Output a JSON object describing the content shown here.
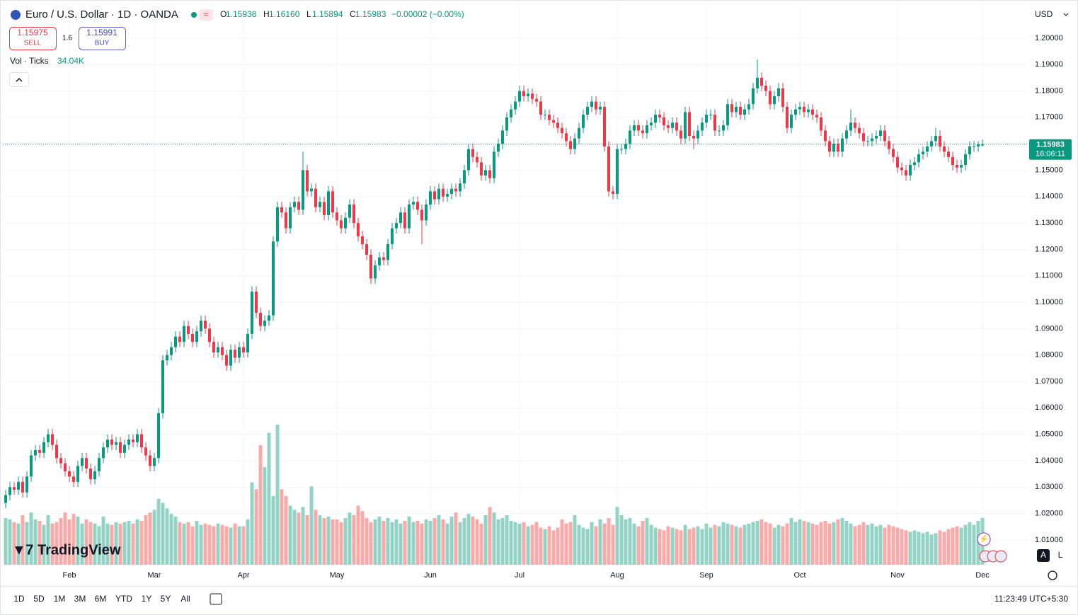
{
  "header": {
    "symbol": "Euro / U.S. Dollar · 1D · OANDA",
    "legend": [
      {
        "key": "O",
        "value": "1.15938"
      },
      {
        "key": "H",
        "value": "1.16160"
      },
      {
        "key": "L",
        "value": "1.15894"
      },
      {
        "key": "C",
        "value": "1.15983"
      }
    ],
    "change": "−0.00002 (−0.00%)"
  },
  "trade": {
    "sell_price": "1.15975",
    "sell": "SELL",
    "spread": "1.6",
    "buy_price": "1.15991",
    "buy": "BUY"
  },
  "volume_legend": {
    "label": "Vol · Ticks",
    "value": "34.04K"
  },
  "currency": "USD",
  "chart_data": {
    "type": "candlestick",
    "grid": true,
    "up_color": "#089981",
    "down_color": "#f23645",
    "volume_up_color": "#93d3c6",
    "volume_down_color": "#f7aaa8",
    "categories": [
      null,
      null,
      null,
      null,
      null,
      null,
      null,
      null,
      null,
      null,
      null,
      null,
      null,
      null,
      null,
      "Feb",
      null,
      null,
      null,
      null,
      null,
      null,
      null,
      null,
      null,
      null,
      null,
      null,
      null,
      null,
      null,
      null,
      null,
      null,
      null,
      "Mar",
      null,
      null,
      null,
      null,
      null,
      null,
      null,
      null,
      null,
      null,
      null,
      null,
      null,
      null,
      null,
      null,
      null,
      null,
      null,
      null,
      "Apr",
      null,
      null,
      null,
      null,
      null,
      null,
      null,
      null,
      null,
      null,
      null,
      null,
      null,
      null,
      null,
      null,
      null,
      null,
      null,
      null,
      null,
      "May",
      null,
      null,
      null,
      null,
      null,
      null,
      null,
      null,
      null,
      null,
      null,
      null,
      null,
      null,
      null,
      null,
      null,
      null,
      null,
      null,
      null,
      "Jun",
      null,
      null,
      null,
      null,
      null,
      null,
      null,
      null,
      null,
      null,
      null,
      null,
      null,
      null,
      null,
      null,
      null,
      null,
      null,
      null,
      "Jul",
      null,
      null,
      null,
      null,
      null,
      null,
      null,
      null,
      null,
      null,
      null,
      null,
      null,
      null,
      null,
      null,
      null,
      null,
      null,
      null,
      null,
      null,
      "Aug",
      null,
      null,
      null,
      null,
      null,
      null,
      null,
      null,
      null,
      null,
      null,
      null,
      null,
      null,
      null,
      null,
      null,
      null,
      null,
      null,
      "Sep",
      null,
      null,
      null,
      null,
      null,
      null,
      null,
      null,
      null,
      null,
      null,
      null,
      null,
      null,
      null,
      null,
      null,
      null,
      null,
      null,
      null,
      "Oct",
      null,
      null,
      null,
      null,
      null,
      null,
      null,
      null,
      null,
      null,
      null,
      null,
      null,
      null,
      null,
      null,
      null,
      null,
      null,
      null,
      null,
      null,
      "Nov",
      null,
      null,
      null,
      null,
      null,
      null,
      null,
      null,
      null,
      null,
      null,
      null,
      null,
      null,
      null,
      null,
      null,
      null,
      null,
      "Dec"
    ],
    "open": [
      1.024,
      1.027,
      1.03,
      1.029,
      1.032,
      1.028,
      1.034,
      1.042,
      1.044,
      1.043,
      1.047,
      1.05,
      1.046,
      1.041,
      1.039,
      1.036,
      1.034,
      1.032,
      1.038,
      1.041,
      1.037,
      1.033,
      1.036,
      1.041,
      1.045,
      1.048,
      1.046,
      1.047,
      1.043,
      1.046,
      1.048,
      1.047,
      1.05,
      1.045,
      1.042,
      1.038,
      1.041,
      1.058,
      1.078,
      1.08,
      1.083,
      1.087,
      1.085,
      1.091,
      1.088,
      1.085,
      1.089,
      1.093,
      1.09,
      1.085,
      1.081,
      1.083,
      1.08,
      1.076,
      1.082,
      1.079,
      1.083,
      1.081,
      1.088,
      1.104,
      1.096,
      1.091,
      1.093,
      1.095,
      1.123,
      1.136,
      1.134,
      1.128,
      1.136,
      1.138,
      1.135,
      1.15,
      1.142,
      1.143,
      1.136,
      1.138,
      1.133,
      1.142,
      1.134,
      1.131,
      1.128,
      1.132,
      1.137,
      1.13,
      1.125,
      1.122,
      1.118,
      1.109,
      1.114,
      1.117,
      1.116,
      1.122,
      1.128,
      1.13,
      1.134,
      1.128,
      1.137,
      1.138,
      1.135,
      1.131,
      1.137,
      1.142,
      1.139,
      1.143,
      1.14,
      1.141,
      1.143,
      1.142,
      1.145,
      1.15,
      1.158,
      1.155,
      1.153,
      1.148,
      1.15,
      1.147,
      1.157,
      1.16,
      1.165,
      1.17,
      1.173,
      1.176,
      1.18,
      1.178,
      1.179,
      1.177,
      1.176,
      1.171,
      1.171,
      1.169,
      1.168,
      1.166,
      1.164,
      1.161,
      1.158,
      1.162,
      1.166,
      1.171,
      1.174,
      1.176,
      1.173,
      1.174,
      1.159,
      1.142,
      1.141,
      1.158,
      1.158,
      1.16,
      1.165,
      1.167,
      1.165,
      1.164,
      1.167,
      1.168,
      1.171,
      1.17,
      1.167,
      1.166,
      1.168,
      1.165,
      1.162,
      1.172,
      1.163,
      1.162,
      1.165,
      1.168,
      1.171,
      1.171,
      1.165,
      1.165,
      1.167,
      1.175,
      1.172,
      1.174,
      1.171,
      1.173,
      1.175,
      1.181,
      1.185,
      1.182,
      1.18,
      1.175,
      1.178,
      1.181,
      1.174,
      1.166,
      1.171,
      1.173,
      1.174,
      1.172,
      1.173,
      1.171,
      1.17,
      1.165,
      1.161,
      1.157,
      1.16,
      1.157,
      1.162,
      1.165,
      1.168,
      1.166,
      1.164,
      1.161,
      1.161,
      1.162,
      1.163,
      1.165,
      1.161,
      1.158,
      1.155,
      1.151,
      1.15,
      1.148,
      1.152,
      1.153,
      1.156,
      1.157,
      1.159,
      1.161,
      1.163,
      1.159,
      1.157,
      1.155,
      1.152,
      1.151,
      1.152,
      1.156,
      1.159,
      1.159,
      1.15938
    ],
    "high": [
      1.029,
      1.032,
      1.032,
      1.034,
      1.034,
      1.036,
      1.044,
      1.046,
      1.046,
      1.049,
      1.052,
      1.052,
      1.048,
      1.043,
      1.041,
      1.038,
      1.036,
      1.04,
      1.043,
      1.043,
      1.039,
      1.038,
      1.043,
      1.047,
      1.05,
      1.05,
      1.049,
      1.049,
      1.048,
      1.05,
      1.05,
      1.052,
      1.052,
      1.047,
      1.044,
      1.043,
      1.06,
      1.08,
      1.082,
      1.085,
      1.089,
      1.089,
      1.093,
      1.093,
      1.09,
      1.091,
      1.095,
      1.095,
      1.092,
      1.087,
      1.085,
      1.085,
      1.082,
      1.084,
      1.084,
      1.085,
      1.085,
      1.09,
      1.106,
      1.106,
      1.098,
      1.095,
      1.097,
      1.125,
      1.138,
      1.138,
      1.136,
      1.138,
      1.14,
      1.14,
      1.157,
      1.152,
      1.145,
      1.145,
      1.14,
      1.14,
      1.144,
      1.144,
      1.136,
      1.133,
      1.134,
      1.139,
      1.139,
      1.132,
      1.127,
      1.124,
      1.12,
      1.116,
      1.119,
      1.119,
      1.124,
      1.13,
      1.132,
      1.136,
      1.136,
      1.139,
      1.14,
      1.14,
      1.137,
      1.139,
      1.144,
      1.144,
      1.145,
      1.145,
      1.143,
      1.145,
      1.145,
      1.147,
      1.152,
      1.16,
      1.16,
      1.157,
      1.155,
      1.152,
      1.152,
      1.159,
      1.162,
      1.167,
      1.172,
      1.175,
      1.178,
      1.182,
      1.182,
      1.181,
      1.181,
      1.179,
      1.178,
      1.173,
      1.173,
      1.171,
      1.17,
      1.168,
      1.166,
      1.163,
      1.164,
      1.168,
      1.173,
      1.176,
      1.178,
      1.178,
      1.176,
      1.176,
      1.161,
      1.144,
      1.16,
      1.16,
      1.162,
      1.167,
      1.169,
      1.169,
      1.167,
      1.169,
      1.17,
      1.173,
      1.173,
      1.172,
      1.169,
      1.17,
      1.17,
      1.167,
      1.174,
      1.174,
      1.165,
      1.167,
      1.17,
      1.173,
      1.173,
      1.173,
      1.167,
      1.169,
      1.177,
      1.177,
      1.176,
      1.176,
      1.175,
      1.177,
      1.183,
      1.192,
      1.187,
      1.184,
      1.182,
      1.18,
      1.183,
      1.183,
      1.176,
      1.173,
      1.175,
      1.176,
      1.176,
      1.175,
      1.175,
      1.173,
      1.172,
      1.167,
      1.163,
      1.162,
      1.162,
      1.164,
      1.167,
      1.173,
      1.17,
      1.168,
      1.166,
      1.163,
      1.164,
      1.165,
      1.167,
      1.167,
      1.163,
      1.16,
      1.157,
      1.153,
      1.152,
      1.154,
      1.155,
      1.158,
      1.159,
      1.161,
      1.163,
      1.166,
      1.165,
      1.161,
      1.159,
      1.157,
      1.154,
      1.154,
      1.158,
      1.161,
      1.161,
      1.161,
      1.1616
    ],
    "low": [
      1.022,
      1.025,
      1.027,
      1.027,
      1.026,
      1.026,
      1.032,
      1.04,
      1.041,
      1.041,
      1.045,
      1.044,
      1.039,
      1.037,
      1.034,
      1.032,
      1.03,
      1.03,
      1.036,
      1.035,
      1.031,
      1.031,
      1.034,
      1.039,
      1.043,
      1.044,
      1.044,
      1.041,
      1.041,
      1.044,
      1.045,
      1.045,
      1.043,
      1.04,
      1.036,
      1.036,
      1.039,
      1.056,
      1.076,
      1.078,
      1.081,
      1.083,
      1.083,
      1.086,
      1.083,
      1.083,
      1.087,
      1.088,
      1.083,
      1.079,
      1.079,
      1.078,
      1.074,
      1.074,
      1.077,
      1.077,
      1.079,
      1.079,
      1.086,
      1.094,
      1.089,
      1.089,
      1.091,
      1.093,
      1.121,
      1.132,
      1.126,
      1.126,
      1.134,
      1.133,
      1.133,
      1.14,
      1.14,
      1.134,
      1.134,
      1.131,
      1.131,
      1.132,
      1.129,
      1.126,
      1.126,
      1.13,
      1.128,
      1.123,
      1.12,
      1.116,
      1.107,
      1.107,
      1.112,
      1.114,
      1.114,
      1.12,
      1.126,
      1.128,
      1.126,
      1.126,
      1.135,
      1.133,
      1.122,
      1.129,
      1.135,
      1.137,
      1.137,
      1.138,
      1.138,
      1.139,
      1.14,
      1.14,
      1.143,
      1.148,
      1.153,
      1.151,
      1.146,
      1.146,
      1.145,
      1.145,
      1.155,
      1.158,
      1.163,
      1.168,
      1.171,
      1.174,
      1.176,
      1.176,
      1.175,
      1.174,
      1.169,
      1.169,
      1.167,
      1.166,
      1.164,
      1.162,
      1.159,
      1.156,
      1.156,
      1.16,
      1.164,
      1.169,
      1.172,
      1.171,
      1.171,
      1.157,
      1.14,
      1.139,
      1.139,
      1.156,
      1.156,
      1.158,
      1.163,
      1.163,
      1.162,
      1.162,
      1.165,
      1.166,
      1.168,
      1.165,
      1.164,
      1.164,
      1.163,
      1.16,
      1.16,
      1.161,
      1.158,
      1.16,
      1.163,
      1.166,
      1.169,
      1.163,
      1.163,
      1.163,
      1.165,
      1.17,
      1.17,
      1.169,
      1.169,
      1.171,
      1.173,
      1.179,
      1.18,
      1.178,
      1.173,
      1.173,
      1.176,
      1.172,
      1.164,
      1.164,
      1.169,
      1.171,
      1.17,
      1.17,
      1.169,
      1.168,
      1.163,
      1.159,
      1.155,
      1.155,
      1.155,
      1.155,
      1.16,
      1.163,
      1.164,
      1.162,
      1.159,
      1.159,
      1.159,
      1.16,
      1.161,
      1.159,
      1.156,
      1.153,
      1.149,
      1.148,
      1.146,
      1.146,
      1.15,
      1.151,
      1.154,
      1.155,
      1.157,
      1.159,
      1.157,
      1.155,
      1.153,
      1.15,
      1.149,
      1.149,
      1.15,
      1.154,
      1.157,
      1.157,
      1.15894
    ],
    "close": [
      1.027,
      1.03,
      1.029,
      1.032,
      1.028,
      1.034,
      1.042,
      1.044,
      1.043,
      1.047,
      1.05,
      1.046,
      1.041,
      1.039,
      1.036,
      1.034,
      1.032,
      1.038,
      1.041,
      1.037,
      1.033,
      1.036,
      1.041,
      1.045,
      1.048,
      1.046,
      1.047,
      1.043,
      1.046,
      1.048,
      1.047,
      1.05,
      1.045,
      1.042,
      1.038,
      1.041,
      1.058,
      1.078,
      1.08,
      1.083,
      1.087,
      1.085,
      1.091,
      1.088,
      1.085,
      1.089,
      1.093,
      1.09,
      1.085,
      1.081,
      1.083,
      1.08,
      1.076,
      1.082,
      1.079,
      1.083,
      1.081,
      1.088,
      1.104,
      1.096,
      1.091,
      1.093,
      1.095,
      1.123,
      1.136,
      1.134,
      1.128,
      1.136,
      1.138,
      1.135,
      1.15,
      1.142,
      1.143,
      1.136,
      1.138,
      1.133,
      1.142,
      1.134,
      1.131,
      1.128,
      1.132,
      1.137,
      1.13,
      1.125,
      1.122,
      1.118,
      1.109,
      1.114,
      1.117,
      1.116,
      1.122,
      1.128,
      1.13,
      1.134,
      1.128,
      1.137,
      1.138,
      1.135,
      1.131,
      1.137,
      1.142,
      1.139,
      1.143,
      1.14,
      1.141,
      1.143,
      1.142,
      1.145,
      1.15,
      1.158,
      1.155,
      1.153,
      1.148,
      1.15,
      1.147,
      1.157,
      1.16,
      1.165,
      1.17,
      1.173,
      1.176,
      1.18,
      1.178,
      1.179,
      1.177,
      1.176,
      1.171,
      1.171,
      1.169,
      1.168,
      1.166,
      1.164,
      1.161,
      1.158,
      1.162,
      1.166,
      1.171,
      1.174,
      1.176,
      1.173,
      1.174,
      1.159,
      1.142,
      1.141,
      1.158,
      1.158,
      1.16,
      1.165,
      1.167,
      1.165,
      1.164,
      1.167,
      1.168,
      1.171,
      1.17,
      1.167,
      1.166,
      1.168,
      1.165,
      1.162,
      1.172,
      1.163,
      1.162,
      1.165,
      1.168,
      1.171,
      1.171,
      1.165,
      1.165,
      1.167,
      1.175,
      1.172,
      1.174,
      1.171,
      1.173,
      1.175,
      1.181,
      1.185,
      1.182,
      1.18,
      1.175,
      1.178,
      1.181,
      1.174,
      1.166,
      1.171,
      1.173,
      1.174,
      1.172,
      1.173,
      1.171,
      1.17,
      1.165,
      1.161,
      1.157,
      1.16,
      1.157,
      1.162,
      1.165,
      1.168,
      1.166,
      1.164,
      1.161,
      1.161,
      1.162,
      1.163,
      1.165,
      1.161,
      1.158,
      1.155,
      1.151,
      1.15,
      1.148,
      1.152,
      1.153,
      1.156,
      1.157,
      1.159,
      1.161,
      1.163,
      1.159,
      1.157,
      1.155,
      1.152,
      1.151,
      1.152,
      1.156,
      1.159,
      1.159,
      1.15985,
      1.15983
    ],
    "volume": [
      34,
      33,
      31,
      30,
      36,
      31,
      38,
      33,
      32,
      29,
      36,
      30,
      31,
      34,
      38,
      33,
      37,
      35,
      30,
      33,
      31,
      30,
      28,
      35,
      30,
      29,
      31,
      30,
      31,
      32,
      30,
      33,
      32,
      36,
      38,
      40,
      48,
      45,
      41,
      37,
      35,
      31,
      30,
      31,
      28,
      32,
      29,
      30,
      29,
      28,
      30,
      29,
      28,
      27,
      30,
      28,
      28,
      33,
      60,
      55,
      87,
      71,
      96,
      50,
      102,
      55,
      50,
      43,
      40,
      38,
      42,
      36,
      57,
      40,
      36,
      34,
      35,
      33,
      33,
      31,
      34,
      38,
      36,
      43,
      39,
      34,
      31,
      33,
      35,
      32,
      34,
      31,
      33,
      30,
      32,
      35,
      31,
      32,
      30,
      33,
      32,
      34,
      36,
      33,
      30,
      35,
      38,
      31,
      34,
      37,
      35,
      33,
      30,
      36,
      42,
      38,
      33,
      34,
      36,
      32,
      31,
      30,
      31,
      28,
      29,
      31,
      27,
      26,
      28,
      25,
      27,
      33,
      30,
      31,
      36,
      29,
      27,
      26,
      31,
      28,
      33,
      30,
      34,
      29,
      42,
      36,
      33,
      34,
      30,
      28,
      32,
      34,
      29,
      27,
      26,
      25,
      28,
      27,
      26,
      25,
      29,
      26,
      27,
      28,
      26,
      30,
      27,
      29,
      28,
      31,
      30,
      29,
      28,
      27,
      29,
      30,
      31,
      32,
      33,
      31,
      30,
      27,
      29,
      28,
      30,
      34,
      31,
      33,
      32,
      31,
      30,
      29,
      31,
      32,
      30,
      31,
      33,
      34,
      32,
      30,
      28,
      29,
      31,
      29,
      30,
      28,
      29,
      27,
      29,
      28,
      27,
      26,
      25,
      24,
      25,
      24,
      23,
      24,
      22,
      23,
      25,
      24,
      26,
      27,
      28,
      27,
      29,
      31,
      29,
      32,
      34.04
    ],
    "ylim": [
      1.0006,
      1.2131
    ],
    "volume_ylim": [
      0,
      105
    ],
    "yticks": [
      {
        "value": 1.01,
        "label": "1.01000"
      },
      {
        "value": 1.02,
        "label": "1.02000"
      },
      {
        "value": 1.03,
        "label": "1.03000"
      },
      {
        "value": 1.04,
        "label": "1.04000"
      },
      {
        "value": 1.05,
        "label": "1.05000"
      },
      {
        "value": 1.06,
        "label": "1.06000"
      },
      {
        "value": 1.07,
        "label": "1.07000"
      },
      {
        "value": 1.08,
        "label": "1.08000"
      },
      {
        "value": 1.09,
        "label": "1.09000"
      },
      {
        "value": 1.1,
        "label": "1.10000"
      },
      {
        "value": 1.11,
        "label": "1.11000"
      },
      {
        "value": 1.12,
        "label": "1.12000"
      },
      {
        "value": 1.13,
        "label": "1.13000"
      },
      {
        "value": 1.14,
        "label": "1.14000"
      },
      {
        "value": 1.15,
        "label": "1.15000"
      },
      {
        "value": 1.16,
        "label": "1.16000"
      },
      {
        "value": 1.17,
        "label": "1.17000"
      },
      {
        "value": 1.18,
        "label": "1.18000"
      },
      {
        "value": 1.19,
        "label": "1.19000"
      },
      {
        "value": 1.2,
        "label": "1.20000"
      }
    ],
    "last_price": {
      "value": 1.15983,
      "label": "1.15983"
    },
    "countdown": "16:06:11"
  },
  "timeframes": [
    "1D",
    "5D",
    "1M",
    "3M",
    "6M",
    "YTD",
    "1Y",
    "5Y",
    "All"
  ],
  "clock": "11:23:49 UTC+5:30",
  "brand": "TradingView",
  "scale_buttons": [
    "A",
    "L"
  ]
}
